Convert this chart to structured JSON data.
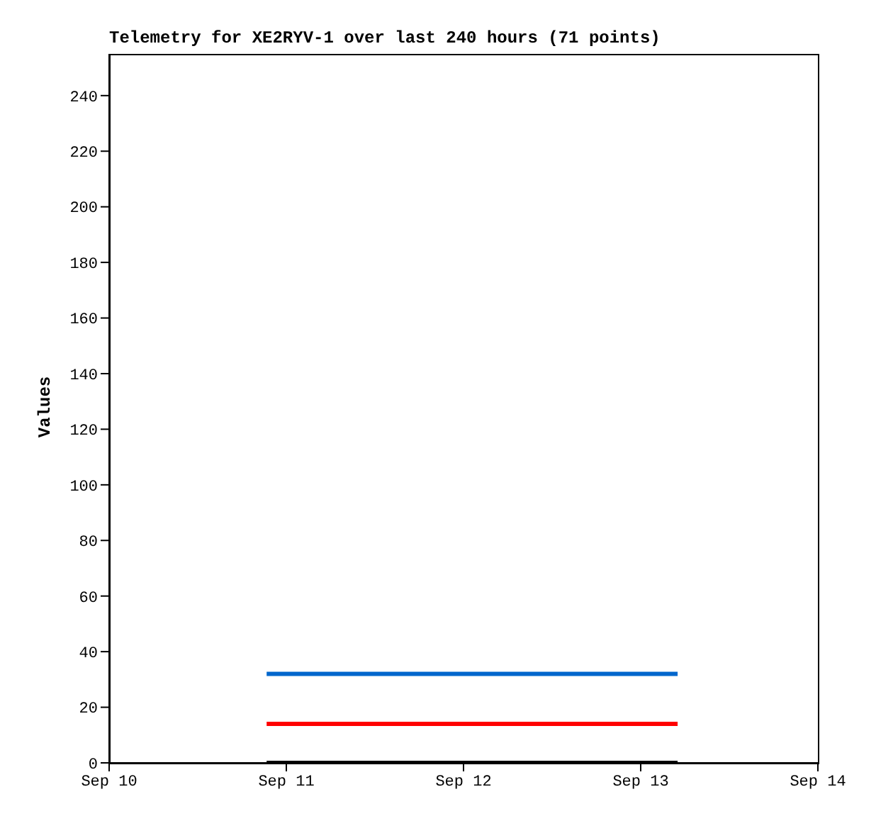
{
  "chart_data": {
    "type": "line",
    "title": "Telemetry for XE2RYV-1 over last 240 hours (71 points)",
    "ylabel": "Values",
    "xlim": [
      "--09-10",
      "--09-14"
    ],
    "xticks": [
      {
        "value": "--09-10",
        "label": "Sep 10"
      },
      {
        "value": "--09-11",
        "label": "Sep 11"
      },
      {
        "value": "--09-12",
        "label": "Sep 12"
      },
      {
        "value": "--09-13",
        "label": "Sep 13"
      },
      {
        "value": "--09-14",
        "label": "Sep 14"
      }
    ],
    "ylim": [
      0,
      255
    ],
    "yticks": [
      0,
      20,
      40,
      60,
      80,
      100,
      120,
      140,
      160,
      180,
      200,
      220,
      240
    ],
    "grid": false,
    "legend": false,
    "marker": "none",
    "line_style": "solid",
    "series": [
      {
        "color": "#0066cc",
        "x": [
          "--09-10T21:20",
          "--09-13T05:00"
        ],
        "values": [
          32,
          32
        ]
      },
      {
        "color": "#ff0000",
        "x": [
          "--09-10T21:20",
          "--09-13T05:00"
        ],
        "values": [
          14,
          14
        ]
      },
      {
        "color": "#000000",
        "x": [
          "--09-10T21:20",
          "--09-13T05:00"
        ],
        "values": [
          0,
          0
        ]
      }
    ]
  }
}
